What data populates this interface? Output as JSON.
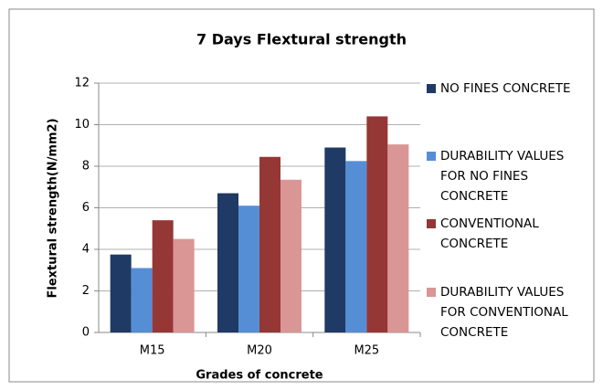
{
  "chart_data": {
    "type": "bar",
    "title": "7 Days Flextural strength",
    "x_label": "Grades of concrete",
    "y_label": "Flextural strength(N/mm2)",
    "categories": [
      "M15",
      "M20",
      "M25"
    ],
    "series": [
      {
        "name": "NO FINES CONCRETE",
        "color": "#1f3a64",
        "values": [
          3.75,
          6.7,
          8.9
        ]
      },
      {
        "name": "DURABILITY VALUES FOR NO FINES CONCRETE",
        "color": "#558ed5",
        "values": [
          3.1,
          6.1,
          8.25
        ]
      },
      {
        "name": "CONVENTIONAL CONCRETE",
        "color": "#953735",
        "values": [
          5.4,
          8.45,
          10.4
        ]
      },
      {
        "name": "DURABILITY VALUES FOR CONVENTIONAL CONCRETE",
        "color": "#d99694",
        "values": [
          4.5,
          7.35,
          9.05
        ]
      }
    ],
    "ylim": [
      0,
      12
    ],
    "yticks": [
      0,
      2,
      4,
      6,
      8,
      10,
      12
    ],
    "grid": true,
    "legend": "right"
  }
}
